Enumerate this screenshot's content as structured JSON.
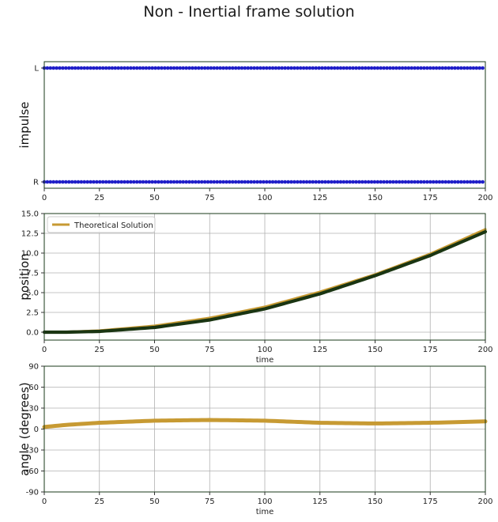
{
  "figure": {
    "title": "Non - Inertial frame solution"
  },
  "colors": {
    "frame": "#1a3a1a",
    "grid": "#b0b0b0",
    "impulse_dots": "#1f1fc8",
    "theory": "#c79a33",
    "simulation": "#1a3512"
  },
  "chart_data": [
    {
      "type": "scatter",
      "ylabel": "impulse",
      "xlabel": "",
      "xlim": [
        0,
        200
      ],
      "xticks": [
        0,
        25,
        50,
        75,
        100,
        125,
        150,
        175,
        200
      ],
      "yticks": [
        "R",
        "L"
      ],
      "grid": false,
      "series": [
        {
          "level": "L",
          "x_start": 0,
          "x_end": 200,
          "step": 1.4
        },
        {
          "level": "R",
          "x_start": 0,
          "x_end": 200,
          "step": 1.4
        }
      ]
    },
    {
      "type": "line",
      "ylabel": "position",
      "xlabel": "time",
      "xlim": [
        0,
        200
      ],
      "ylim": [
        -1,
        15
      ],
      "xticks": [
        0,
        25,
        50,
        75,
        100,
        125,
        150,
        175,
        200
      ],
      "yticks": [
        "0.0",
        "2.5",
        "5.0",
        "7.5",
        "10.0",
        "12.5",
        "15.0"
      ],
      "grid": true,
      "legend": {
        "position": "top-left",
        "entries": [
          "Theoretical Solution"
        ]
      },
      "series": [
        {
          "name": "Theoretical Solution",
          "x": [
            0,
            10,
            25,
            50,
            75,
            100,
            125,
            150,
            175,
            200
          ],
          "y": [
            0.0,
            0.03,
            0.2,
            0.8,
            1.8,
            3.2,
            5.1,
            7.3,
            9.9,
            13.0
          ]
        },
        {
          "x": [
            0,
            10,
            25,
            50,
            75,
            100,
            125,
            150,
            175,
            200
          ],
          "y": [
            0.0,
            0.0,
            0.1,
            0.6,
            1.55,
            2.95,
            4.85,
            7.15,
            9.7,
            12.7
          ]
        }
      ]
    },
    {
      "type": "line",
      "ylabel": "angle (degrees)",
      "xlabel": "time",
      "xlim": [
        0,
        200
      ],
      "ylim": [
        -90,
        90
      ],
      "xticks": [
        0,
        25,
        50,
        75,
        100,
        125,
        150,
        175,
        200
      ],
      "yticks": [
        "90",
        "60",
        "30",
        "0",
        "-30",
        "-60",
        "-90"
      ],
      "grid": true,
      "series": [
        {
          "x": [
            0,
            10,
            25,
            50,
            75,
            100,
            125,
            150,
            175,
            200
          ],
          "y": [
            3,
            6,
            9,
            12,
            13,
            12,
            9,
            8,
            9,
            11
          ]
        }
      ]
    }
  ]
}
